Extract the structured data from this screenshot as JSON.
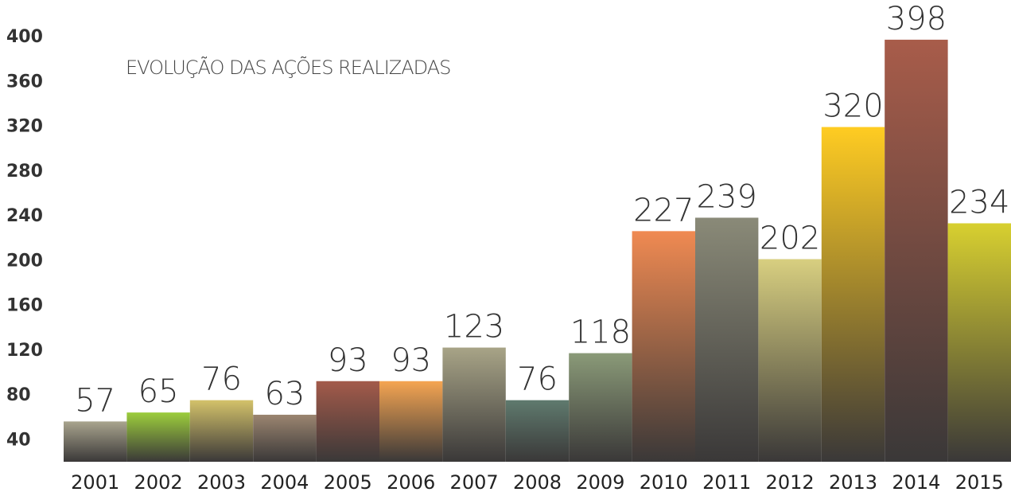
{
  "chart_data": {
    "type": "bar",
    "title": "EVOLUÇÃO DAS AÇÕES REALIZADAS",
    "categories": [
      "2001",
      "2002",
      "2003",
      "2004",
      "2005",
      "2006",
      "2007",
      "2008",
      "2009",
      "2010",
      "2011",
      "2012",
      "2013",
      "2014",
      "2015"
    ],
    "values": [
      57,
      65,
      76,
      63,
      93,
      93,
      123,
      76,
      118,
      227,
      239,
      202,
      320,
      398,
      234
    ],
    "colors": [
      "#a9a48e",
      "#9ccd3c",
      "#d4c26a",
      "#9b8570",
      "#a35a4a",
      "#f5a552",
      "#a8a487",
      "#5f7a6e",
      "#8a9a78",
      "#f08a52",
      "#8a8a78",
      "#d8cf80",
      "#ffcc22",
      "#a85c4a",
      "#d8d030"
    ],
    "ylim": [
      21,
      410
    ],
    "yticks": [
      40,
      80,
      120,
      160,
      200,
      240,
      280,
      320,
      360,
      400
    ],
    "grid": true
  }
}
